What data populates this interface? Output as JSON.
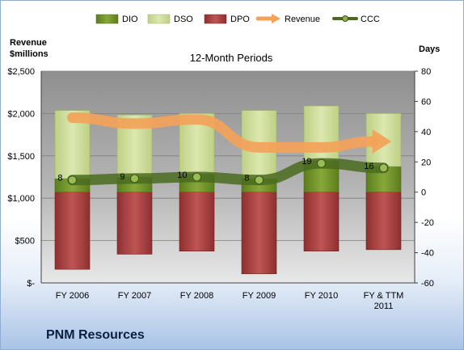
{
  "company_name": "PNM Resources",
  "chart_data": {
    "type": "bar",
    "title": "12-Month Periods",
    "ylabel_left": "Revenue\n$millions",
    "ylabel_right": "Days",
    "categories": [
      "FY 2006",
      "FY 2007",
      "FY 2008",
      "FY 2009",
      "FY 2010",
      "FY & TTM\n2011"
    ],
    "ylim_left": [
      0,
      2500
    ],
    "yticks_left": [
      "$-",
      "$500",
      "$1,000",
      "$1,500",
      "$2,000",
      "$2,500"
    ],
    "ylim_right": [
      -60,
      80
    ],
    "yticks_right": [
      "-60",
      "-40",
      "-20",
      "0",
      "20",
      "40",
      "60",
      "80"
    ],
    "grid": true,
    "legend_position": "top",
    "legend": [
      {
        "name": "DIO",
        "kind": "bar",
        "color": "#6b8e23"
      },
      {
        "name": "DSO",
        "kind": "bar",
        "color": "#c9dc92"
      },
      {
        "name": "DPO",
        "kind": "bar",
        "color": "#a83c3c"
      },
      {
        "name": "Revenue",
        "kind": "arrow",
        "color": "#f4a259"
      },
      {
        "name": "CCC",
        "kind": "line",
        "color": "#4a6b1e"
      }
    ],
    "series": [
      {
        "name": "DIO",
        "axis": "right",
        "values": [
          9,
          10,
          12,
          9,
          21,
          17
        ]
      },
      {
        "name": "DSO",
        "axis": "right",
        "values": [
          45,
          41,
          40,
          45,
          36,
          35
        ]
      },
      {
        "name": "DPO",
        "axis": "right",
        "values": [
          -51,
          -41,
          -39,
          -54,
          -39,
          -38
        ]
      },
      {
        "name": "Revenue",
        "axis": "left",
        "values": [
          1950,
          1880,
          1930,
          1600,
          1600,
          1670
        ]
      },
      {
        "name": "CCC",
        "axis": "right",
        "values": [
          8,
          9,
          10,
          8,
          19,
          16
        ],
        "labels": [
          "8",
          "9",
          "10",
          "8",
          "19",
          "16"
        ]
      }
    ],
    "colors": {
      "plot_background": "#a6a6a6",
      "dio": "#6b8e23",
      "dso": "#c9dc92",
      "dpo": "#a83c3c",
      "revenue": "#f4a259",
      "ccc": "#4a6b1e"
    }
  }
}
